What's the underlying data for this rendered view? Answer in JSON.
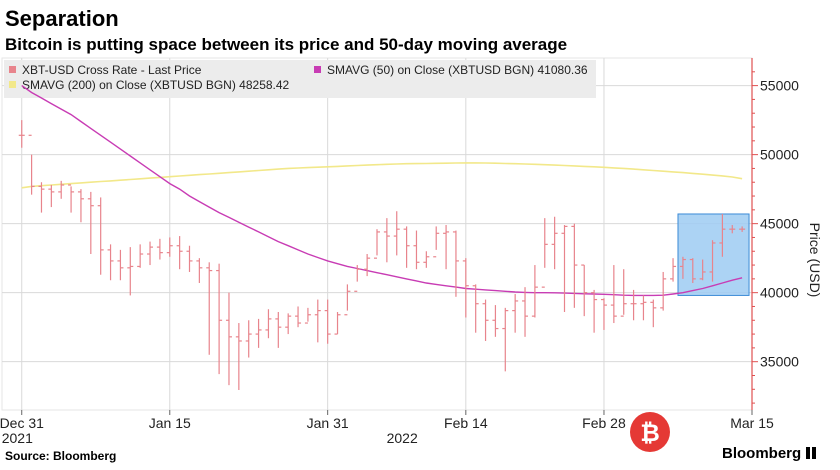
{
  "header": {
    "title": "Separation",
    "subtitle": "Bitcoin is putting space between its price and 50-day moving average"
  },
  "legend": {
    "price": "XBT-USD Cross Rate - Last Price",
    "sma50": "SMAVG (50)  on Close (XBTUSD BGN) 41080.36",
    "sma200": "SMAVG (200)  on Close (XBTUSD BGN) 48258.42"
  },
  "footer": {
    "source": "Source: Bloomberg",
    "brand": "Bloomberg"
  },
  "colors": {
    "price": "#e8848c",
    "sma50": "#c83cb4",
    "sma200": "#f2e88a",
    "highlight_fill": "#9ecbf2",
    "highlight_stroke": "#3a8ad6",
    "axis": "#e05050",
    "grid": "#d9d9d9"
  },
  "chart_data": {
    "type": "line",
    "title": "Separation",
    "subtitle": "Bitcoin is putting space between its price and 50-day moving average",
    "ylabel": "Price (USD)",
    "ylim": [
      31500,
      57000
    ],
    "yticks": [
      35000,
      40000,
      45000,
      50000,
      55000
    ],
    "x_range_days": [
      -2,
      74
    ],
    "xticks": [
      {
        "label": "Dec 31",
        "day": 0
      },
      {
        "label": "Jan 15",
        "day": 15
      },
      {
        "label": "Jan 31",
        "day": 31
      },
      {
        "label": "Feb 14",
        "day": 45
      },
      {
        "label": "Feb 28",
        "day": 59
      },
      {
        "label": "Mar 15",
        "day": 74
      }
    ],
    "year_labels": [
      {
        "label": "2021",
        "day": 0
      },
      {
        "label": "2022",
        "day": 39
      }
    ],
    "price_close": [
      51400,
      47700,
      47500,
      47300,
      47800,
      47300,
      46800,
      46300,
      43100,
      42300,
      41800,
      41900,
      42800,
      43300,
      42900,
      43400,
      43000,
      42300,
      41800,
      41600,
      38000,
      36800,
      36500,
      37000,
      37300,
      38100,
      37500,
      38300,
      37800,
      38400,
      38700,
      37000,
      38400,
      40100,
      41700,
      42500,
      44400,
      44100,
      44600,
      43400,
      42200,
      42600,
      44300,
      44400,
      42300,
      40500,
      39200,
      38000,
      37400,
      38700,
      39400,
      38300,
      40400,
      43500,
      44300,
      44800,
      42000,
      40000,
      39500,
      39100,
      38300,
      39200,
      39200,
      39300,
      38900,
      41000,
      41900,
      42400,
      41000,
      41500,
      43600,
      44600,
      44600,
      44600
    ],
    "price_high": [
      52500,
      50000,
      48000,
      47800,
      48100,
      47700,
      47500,
      47300,
      46900,
      43500,
      43100,
      43300,
      43500,
      43700,
      43900,
      44000,
      44100,
      43400,
      42500,
      42200,
      42100,
      40000,
      37800,
      38000,
      38100,
      38800,
      38600,
      38500,
      39000,
      38900,
      39500,
      39500,
      38600,
      40600,
      42000,
      42800,
      44600,
      45400,
      45900,
      44800,
      44500,
      43000,
      44800,
      44900,
      44500,
      42500,
      40600,
      39500,
      39100,
      38900,
      39900,
      40400,
      42000,
      45400,
      45500,
      44900,
      45000,
      42000,
      40200,
      39600,
      42000,
      41700,
      40200,
      39800,
      39500,
      41500,
      42500,
      42600,
      42500,
      42400,
      43800,
      45700,
      44900,
      44800
    ],
    "price_low": [
      50500,
      47100,
      45800,
      46200,
      46800,
      45800,
      45100,
      42800,
      41300,
      40900,
      40900,
      39800,
      41800,
      42000,
      42400,
      42600,
      41700,
      41500,
      40700,
      35500,
      34100,
      33300,
      32950,
      35300,
      36000,
      36700,
      36000,
      37000,
      37500,
      37900,
      36400,
      36300,
      37000,
      38700,
      40800,
      41200,
      42700,
      42200,
      42700,
      41800,
      41700,
      41800,
      43100,
      41700,
      39700,
      38200,
      37100,
      36500,
      36800,
      34300,
      37100,
      36800,
      38200,
      41800,
      41700,
      38600,
      38900,
      38300,
      37100,
      37300,
      37800,
      38400,
      38000,
      38000,
      37500,
      38700,
      40800,
      41000,
      40700,
      40900,
      40800,
      42600,
      44300,
      44400
    ],
    "sma50": [
      55000,
      54500,
      54100,
      53700,
      53300,
      52900,
      52400,
      51900,
      51400,
      50900,
      50400,
      49900,
      49400,
      48900,
      48400,
      47900,
      47500,
      47000,
      46600,
      46200,
      45800,
      45450,
      45100,
      44750,
      44400,
      44050,
      43700,
      43400,
      43100,
      42800,
      42550,
      42300,
      42100,
      41900,
      41750,
      41600,
      41450,
      41300,
      41150,
      41000,
      40850,
      40700,
      40600,
      40500,
      40400,
      40300,
      40250,
      40200,
      40150,
      40100,
      40050,
      40020,
      40000,
      40000,
      39990,
      39970,
      39950,
      39920,
      39900,
      39880,
      39850,
      39820,
      39800,
      39800,
      39800,
      39820,
      39900,
      40000,
      40150,
      40300,
      40500,
      40700,
      40900,
      41080
    ],
    "sma200": [
      47600,
      47700,
      47750,
      47800,
      47850,
      47900,
      47950,
      48000,
      48050,
      48100,
      48150,
      48200,
      48250,
      48300,
      48350,
      48400,
      48450,
      48500,
      48550,
      48600,
      48650,
      48700,
      48750,
      48800,
      48850,
      48900,
      48950,
      49000,
      49030,
      49060,
      49090,
      49120,
      49150,
      49180,
      49210,
      49240,
      49270,
      49300,
      49320,
      49340,
      49350,
      49360,
      49370,
      49380,
      49390,
      49400,
      49400,
      49390,
      49380,
      49360,
      49340,
      49320,
      49300,
      49270,
      49240,
      49210,
      49180,
      49150,
      49120,
      49080,
      49040,
      49000,
      48950,
      48900,
      48850,
      48800,
      48750,
      48700,
      48640,
      48580,
      48520,
      48460,
      48380,
      48258
    ],
    "highlight": {
      "day_start": 66.5,
      "day_end": 73.7,
      "y_low": 39800,
      "y_high": 45700
    }
  }
}
